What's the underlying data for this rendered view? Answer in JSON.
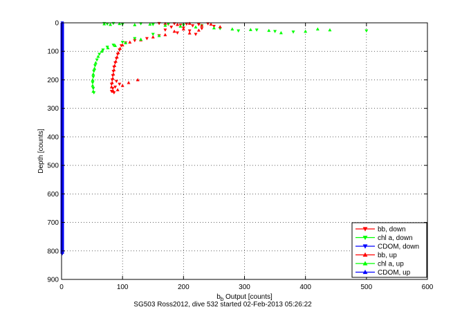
{
  "chart_data": {
    "type": "scatter",
    "xlabel_main": "b",
    "xlabel_sub": "b",
    "xlabel_rest": " Output [counts]",
    "ylabel": "Depth [counts]",
    "caption": "SG503 Ross2012, dive 532 started 02-Feb-2013 05:26:22",
    "xlim": [
      0,
      600
    ],
    "ylim": [
      900,
      0
    ],
    "y_reversed": true,
    "grid": true,
    "x_ticks": [
      "0",
      "100",
      "200",
      "300",
      "400",
      "500",
      "600"
    ],
    "y_ticks": [
      "0",
      "100",
      "200",
      "300",
      "400",
      "500",
      "600",
      "700",
      "800",
      "900"
    ],
    "x_tick_values": [
      0,
      100,
      200,
      300,
      400,
      500,
      600
    ],
    "y_tick_values": [
      0,
      100,
      200,
      300,
      400,
      500,
      600,
      700,
      800,
      900
    ],
    "legend_position": "bottom-right",
    "legend": [
      {
        "label": "bb, down",
        "color": "#ff0000",
        "marker": "triangle-down"
      },
      {
        "label": "chl a, down",
        "color": "#00ff00",
        "marker": "triangle-down"
      },
      {
        "label": "CDOM, down",
        "color": "#0000ff",
        "marker": "triangle-down"
      },
      {
        "label": "bb, up",
        "color": "#ff0000",
        "marker": "triangle-up"
      },
      {
        "label": "chl a, up",
        "color": "#00ff00",
        "marker": "triangle-up"
      },
      {
        "label": "CDOM, up",
        "color": "#0000ff",
        "marker": "triangle-up"
      }
    ],
    "series": [
      {
        "id": "bb_down",
        "color": "#ff0000",
        "marker": "triangle-down",
        "points": [
          [
            160,
            2
          ],
          [
            175,
            5
          ],
          [
            185,
            3
          ],
          [
            195,
            8
          ],
          [
            205,
            4
          ],
          [
            215,
            10
          ],
          [
            225,
            6
          ],
          [
            240,
            3
          ],
          [
            250,
            12
          ],
          [
            180,
            15
          ],
          [
            200,
            18
          ],
          [
            230,
            20
          ],
          [
            170,
            25
          ],
          [
            210,
            28
          ],
          [
            190,
            35
          ],
          [
            220,
            40
          ],
          [
            160,
            45
          ],
          [
            140,
            55
          ],
          [
            120,
            62
          ],
          [
            105,
            70
          ],
          [
            98,
            80
          ],
          [
            95,
            95
          ],
          [
            92,
            110
          ],
          [
            90,
            125
          ],
          [
            88,
            140
          ],
          [
            86,
            155
          ],
          [
            85,
            170
          ],
          [
            84,
            185
          ],
          [
            83,
            200
          ],
          [
            82,
            215
          ],
          [
            84,
            230
          ],
          [
            86,
            245
          ],
          [
            90,
            205
          ],
          [
            95,
            215
          ],
          [
            88,
            225
          ],
          [
            82,
            240
          ]
        ]
      },
      {
        "id": "chl_down",
        "color": "#00ff00",
        "marker": "triangle-down",
        "points": [
          [
            70,
            2
          ],
          [
            75,
            4
          ],
          [
            85,
            2
          ],
          [
            100,
            5
          ],
          [
            130,
            3
          ],
          [
            150,
            6
          ],
          [
            175,
            4
          ],
          [
            200,
            8
          ],
          [
            230,
            10
          ],
          [
            260,
            20
          ],
          [
            290,
            28
          ],
          [
            320,
            25
          ],
          [
            350,
            30
          ],
          [
            380,
            32
          ],
          [
            500,
            28
          ],
          [
            150,
            40
          ],
          [
            120,
            55
          ],
          [
            100,
            68
          ],
          [
            85,
            78
          ],
          [
            75,
            85
          ],
          [
            68,
            95
          ],
          [
            62,
            110
          ],
          [
            58,
            130
          ],
          [
            55,
            150
          ],
          [
            53,
            170
          ],
          [
            52,
            190
          ],
          [
            51,
            210
          ],
          [
            52,
            230
          ],
          [
            53,
            245
          ]
        ]
      },
      {
        "id": "cdom_down",
        "color": "#0000ff",
        "marker": "triangle-down",
        "points": [
          [
            0,
            0
          ],
          [
            0,
            50
          ],
          [
            0,
            100
          ],
          [
            0,
            150
          ],
          [
            0,
            200
          ],
          [
            0,
            250
          ],
          [
            0,
            300
          ],
          [
            0,
            350
          ],
          [
            0,
            400
          ],
          [
            0,
            450
          ],
          [
            0,
            500
          ],
          [
            0,
            550
          ],
          [
            0,
            600
          ],
          [
            0,
            650
          ],
          [
            0,
            700
          ],
          [
            0,
            750
          ],
          [
            0,
            800
          ],
          [
            0,
            810
          ]
        ]
      },
      {
        "id": "bb_up",
        "color": "#ff0000",
        "marker": "triangle-up",
        "points": [
          [
            170,
            3
          ],
          [
            190,
            6
          ],
          [
            210,
            2
          ],
          [
            230,
            9
          ],
          [
            245,
            5
          ],
          [
            260,
            14
          ],
          [
            200,
            22
          ],
          [
            225,
            26
          ],
          [
            185,
            30
          ],
          [
            210,
            36
          ],
          [
            170,
            42
          ],
          [
            150,
            50
          ],
          [
            130,
            60
          ],
          [
            112,
            68
          ],
          [
            100,
            78
          ],
          [
            96,
            90
          ],
          [
            93,
            105
          ],
          [
            91,
            120
          ],
          [
            89,
            135
          ],
          [
            87,
            150
          ],
          [
            86,
            165
          ],
          [
            85,
            180
          ],
          [
            84,
            195
          ],
          [
            83,
            210
          ],
          [
            82,
            225
          ],
          [
            85,
            240
          ],
          [
            125,
            200
          ],
          [
            110,
            210
          ],
          [
            100,
            220
          ],
          [
            92,
            235
          ]
        ]
      },
      {
        "id": "chl_up",
        "color": "#00ff00",
        "marker": "triangle-up",
        "points": [
          [
            70,
            4
          ],
          [
            80,
            6
          ],
          [
            95,
            3
          ],
          [
            120,
            7
          ],
          [
            145,
            5
          ],
          [
            170,
            9
          ],
          [
            195,
            12
          ],
          [
            220,
            15
          ],
          [
            250,
            18
          ],
          [
            280,
            22
          ],
          [
            310,
            24
          ],
          [
            340,
            27
          ],
          [
            360,
            35
          ],
          [
            400,
            30
          ],
          [
            420,
            22
          ],
          [
            440,
            25
          ],
          [
            160,
            45
          ],
          [
            130,
            58
          ],
          [
            105,
            70
          ],
          [
            88,
            80
          ],
          [
            76,
            88
          ],
          [
            66,
            100
          ],
          [
            60,
            118
          ],
          [
            56,
            140
          ],
          [
            54,
            160
          ],
          [
            52,
            180
          ],
          [
            51,
            200
          ],
          [
            51,
            220
          ],
          [
            52,
            240
          ]
        ]
      },
      {
        "id": "cdom_up",
        "color": "#0000ff",
        "marker": "triangle-up",
        "points": [
          [
            0,
            5
          ],
          [
            0,
            60
          ],
          [
            0,
            120
          ],
          [
            0,
            180
          ],
          [
            0,
            240
          ],
          [
            0,
            300
          ],
          [
            0,
            360
          ],
          [
            0,
            420
          ],
          [
            0,
            480
          ],
          [
            0,
            540
          ],
          [
            0,
            600
          ],
          [
            0,
            660
          ],
          [
            0,
            720
          ],
          [
            0,
            780
          ],
          [
            0,
            805
          ]
        ]
      }
    ]
  }
}
